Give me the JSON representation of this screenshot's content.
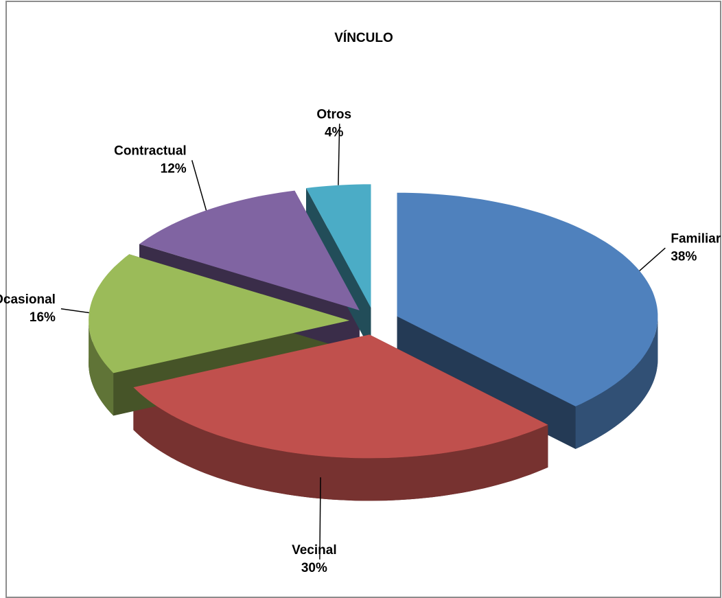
{
  "chart_data": {
    "type": "pie",
    "title": "VÍNCULO",
    "categories": [
      "Familiar",
      "Vecinal",
      "Ocasional",
      "Contractual",
      "Otros"
    ],
    "values": [
      38,
      30,
      16,
      12,
      4
    ],
    "value_labels": [
      "38%",
      "30%",
      "16%",
      "12%",
      "4%"
    ],
    "colors": [
      "#4f81bd",
      "#c0504d",
      "#9bbb59",
      "#8064a2",
      "#4bacc6"
    ],
    "three_d": true,
    "exploded": true
  }
}
